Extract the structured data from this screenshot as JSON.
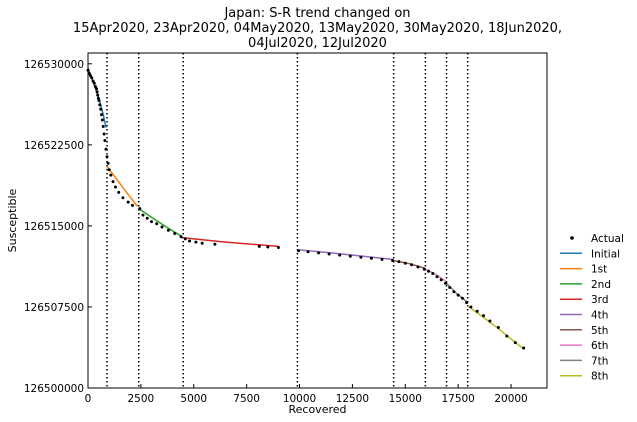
{
  "chart_data": {
    "type": "line",
    "title": [
      "Japan: S-R trend changed on",
      "15Apr2020, 23Apr2020, 04May2020, 13May2020, 30May2020, 18Jun2020,",
      "04Jul2020, 12Jul2020"
    ],
    "xlabel": "Recovered",
    "ylabel": "Susceptible",
    "xlim": [
      0,
      21700
    ],
    "ylim": [
      126500000,
      126531000
    ],
    "xticks": [
      0,
      2500,
      5000,
      7500,
      10000,
      12500,
      15000,
      17500,
      20000
    ],
    "xtick_labels": [
      "0",
      "2500",
      "5000",
      "7500",
      "10000",
      "12500",
      "15000",
      "17500",
      "20000"
    ],
    "yticks": [
      126500000,
      126507500,
      126515000,
      126522500,
      126530000
    ],
    "ytick_labels": [
      "126500000",
      "126507500",
      "126515000",
      "126522500",
      "126530000"
    ],
    "change_points_x": [
      900,
      2400,
      4500,
      9900,
      14450,
      15950,
      16950,
      17950
    ],
    "legend_position": "outside-right",
    "actual": {
      "name": "Actual",
      "color": "#000000",
      "points": [
        [
          0,
          126529400
        ],
        [
          60,
          126529100
        ],
        [
          120,
          126528900
        ],
        [
          180,
          126528700
        ],
        [
          240,
          126528400
        ],
        [
          300,
          126528200
        ],
        [
          350,
          126527900
        ],
        [
          400,
          126527700
        ],
        [
          430,
          126527400
        ],
        [
          460,
          126527100
        ],
        [
          490,
          126526800
        ],
        [
          520,
          126526600
        ],
        [
          560,
          126526200
        ],
        [
          600,
          126525800
        ],
        [
          640,
          126525300
        ],
        [
          680,
          126524800
        ],
        [
          720,
          126524200
        ],
        [
          760,
          126523500
        ],
        [
          800,
          126522900
        ],
        [
          850,
          126522100
        ],
        [
          900,
          126521400
        ],
        [
          950,
          126520800
        ],
        [
          1000,
          126520200
        ],
        [
          1080,
          126519700
        ],
        [
          1180,
          126519100
        ],
        [
          1300,
          126518600
        ],
        [
          1450,
          126518100
        ],
        [
          1650,
          126517600
        ],
        [
          1900,
          126517200
        ],
        [
          2100,
          126516900
        ],
        [
          2450,
          126516600
        ],
        [
          2600,
          126516000
        ],
        [
          2800,
          126515700
        ],
        [
          3000,
          126515400
        ],
        [
          3250,
          126515200
        ],
        [
          3500,
          126514900
        ],
        [
          3800,
          126514600
        ],
        [
          4100,
          126514300
        ],
        [
          4400,
          126514000
        ],
        [
          4600,
          126513800
        ],
        [
          4800,
          126513600
        ],
        [
          5100,
          126513500
        ],
        [
          5400,
          126513400
        ],
        [
          6000,
          126513300
        ],
        [
          8100,
          126513100
        ],
        [
          8500,
          126513050
        ],
        [
          9000,
          126513000
        ],
        [
          9950,
          126512700
        ],
        [
          10400,
          126512600
        ],
        [
          10900,
          126512500
        ],
        [
          11400,
          126512400
        ],
        [
          11900,
          126512300
        ],
        [
          12400,
          126512200
        ],
        [
          12900,
          126512100
        ],
        [
          13400,
          126512000
        ],
        [
          13900,
          126511900
        ],
        [
          14400,
          126511800
        ],
        [
          14700,
          126511700
        ],
        [
          15000,
          126511550
        ],
        [
          15300,
          126511400
        ],
        [
          15600,
          126511200
        ],
        [
          15900,
          126511000
        ],
        [
          16100,
          126510800
        ],
        [
          16300,
          126510600
        ],
        [
          16500,
          126510300
        ],
        [
          16700,
          126510000
        ],
        [
          16900,
          126509700
        ],
        [
          17100,
          126509300
        ],
        [
          17300,
          126508900
        ],
        [
          17500,
          126508600
        ],
        [
          17700,
          126508300
        ],
        [
          17900,
          126507900
        ],
        [
          18100,
          126507500
        ],
        [
          18400,
          126507100
        ],
        [
          18700,
          126506700
        ],
        [
          19000,
          126506200
        ],
        [
          19400,
          126505600
        ],
        [
          19800,
          126504800
        ],
        [
          20200,
          126504200
        ],
        [
          20600,
          126503700
        ]
      ]
    },
    "series": [
      {
        "name": "Initial",
        "color": "#1f77b4",
        "points": [
          [
            0,
            126529600
          ],
          [
            250,
            126528300
          ],
          [
            500,
            126526900
          ],
          [
            720,
            126525300
          ],
          [
            850,
            126524100
          ]
        ]
      },
      {
        "name": "1st",
        "color": "#ff7f0e",
        "points": [
          [
            900,
            126520500
          ],
          [
            1400,
            126519200
          ],
          [
            1900,
            126517900
          ],
          [
            2350,
            126516800
          ]
        ]
      },
      {
        "name": "2nd",
        "color": "#2ca02c",
        "points": [
          [
            2400,
            126516600
          ],
          [
            3000,
            126515800
          ],
          [
            3700,
            126514900
          ],
          [
            4450,
            126514000
          ]
        ]
      },
      {
        "name": "3rd",
        "color": "#d62728",
        "points": [
          [
            4500,
            126513900
          ],
          [
            6500,
            126513500
          ],
          [
            9000,
            126513100
          ]
        ]
      },
      {
        "name": "4th",
        "color": "#9467bd",
        "points": [
          [
            9900,
            126512800
          ],
          [
            11500,
            126512500
          ],
          [
            13000,
            126512200
          ],
          [
            14400,
            126511900
          ]
        ]
      },
      {
        "name": "5th",
        "color": "#8c564b",
        "points": [
          [
            14450,
            126511800
          ],
          [
            15200,
            126511500
          ],
          [
            15900,
            126511100
          ]
        ]
      },
      {
        "name": "6th",
        "color": "#e377c2",
        "points": [
          [
            15950,
            126511000
          ],
          [
            16450,
            126510500
          ],
          [
            16900,
            126509900
          ]
        ]
      },
      {
        "name": "7th",
        "color": "#7f7f7f",
        "points": [
          [
            16950,
            126509700
          ],
          [
            17450,
            126508700
          ],
          [
            17900,
            126508000
          ]
        ]
      },
      {
        "name": "8th",
        "color": "#bcbd22",
        "points": [
          [
            17950,
            126507600
          ],
          [
            19200,
            126505800
          ],
          [
            20600,
            126503600
          ]
        ]
      }
    ]
  }
}
